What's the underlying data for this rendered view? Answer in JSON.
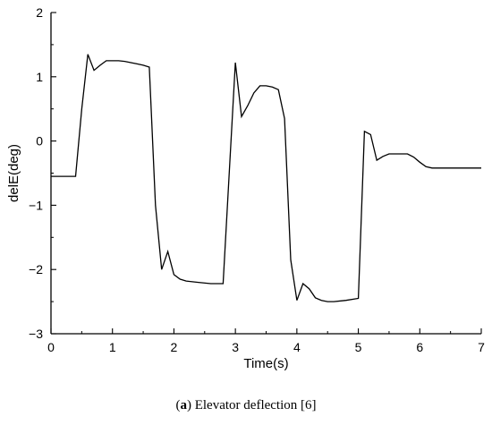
{
  "caption": {
    "open_paren": "(",
    "label": "a",
    "text": ") Elevator deflection [6]"
  },
  "chart_data": {
    "type": "line",
    "xlabel": "Time(s)",
    "ylabel": "delE(deg)",
    "xlim": [
      0,
      7
    ],
    "ylim": [
      -3,
      2
    ],
    "xticks": [
      0,
      1,
      2,
      3,
      4,
      5,
      6,
      7
    ],
    "yticks": [
      -3,
      -2,
      -1,
      0,
      1,
      2
    ],
    "grid": false,
    "series": [
      {
        "color": "#000000",
        "x": [
          0,
          0.4,
          0.5,
          0.6,
          0.7,
          0.8,
          0.9,
          1.0,
          1.1,
          1.2,
          1.3,
          1.4,
          1.5,
          1.6,
          1.7,
          1.8,
          1.9,
          2.0,
          2.1,
          2.2,
          2.4,
          2.6,
          2.8,
          3.0,
          3.1,
          3.2,
          3.3,
          3.4,
          3.5,
          3.6,
          3.7,
          3.8,
          3.9,
          4.0,
          4.1,
          4.2,
          4.3,
          4.4,
          4.5,
          4.6,
          4.8,
          5.0,
          5.1,
          5.2,
          5.3,
          5.4,
          5.5,
          5.6,
          5.7,
          5.8,
          5.9,
          6.0,
          6.1,
          6.2,
          6.5,
          7.0
        ],
        "y": [
          -0.55,
          -0.55,
          0.5,
          1.35,
          1.1,
          1.18,
          1.25,
          1.25,
          1.25,
          1.24,
          1.22,
          1.2,
          1.18,
          1.15,
          -1.0,
          -2.0,
          -1.72,
          -2.08,
          -2.15,
          -2.18,
          -2.2,
          -2.22,
          -2.22,
          1.22,
          0.38,
          0.55,
          0.75,
          0.86,
          0.86,
          0.84,
          0.8,
          0.35,
          -1.85,
          -2.48,
          -2.22,
          -2.3,
          -2.44,
          -2.48,
          -2.5,
          -2.5,
          -2.48,
          -2.45,
          0.15,
          0.1,
          -0.3,
          -0.24,
          -0.2,
          -0.2,
          -0.2,
          -0.2,
          -0.25,
          -0.33,
          -0.4,
          -0.42,
          -0.42,
          -0.42
        ]
      }
    ]
  }
}
